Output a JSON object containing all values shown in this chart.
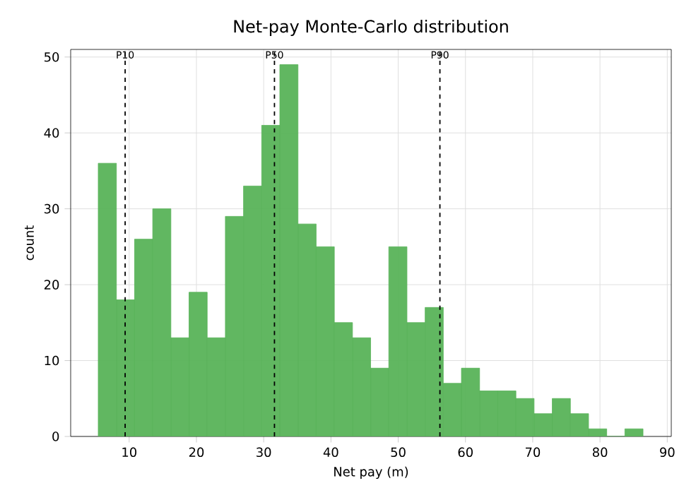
{
  "chart_data": {
    "type": "histogram",
    "title": "Net-pay Monte-Carlo distribution",
    "xlabel": "Net pay (m)",
    "ylabel": "count",
    "bins": [
      5.4,
      8.1,
      10.8,
      13.5,
      16.2,
      18.9,
      21.6,
      24.3,
      27.0,
      29.7,
      32.4,
      35.1,
      37.8,
      40.5,
      43.2,
      45.9,
      48.6,
      51.3,
      54.0,
      56.7,
      59.4,
      62.1,
      64.8,
      67.5,
      70.2,
      72.9,
      75.6,
      78.3,
      81.0,
      83.7,
      86.4
    ],
    "values": [
      36,
      18,
      26,
      30,
      13,
      19,
      13,
      29,
      33,
      41,
      49,
      28,
      25,
      15,
      13,
      9,
      25,
      15,
      17,
      7,
      9,
      6,
      6,
      5,
      3,
      5,
      3,
      1,
      0,
      1
    ],
    "color": "#59b359",
    "xlim": [
      1.3,
      90.6
    ],
    "ylim": [
      0,
      51
    ],
    "xticks": [
      10,
      20,
      30,
      40,
      50,
      60,
      70,
      80,
      90
    ],
    "yticks": [
      0,
      10,
      20,
      30,
      40,
      50
    ],
    "grid": true,
    "ref_lines": [
      {
        "axis": "x",
        "value": 9.4,
        "label": "P10",
        "color": "#000000",
        "line_style": "dashed"
      },
      {
        "axis": "x",
        "value": 31.6,
        "label": "P50",
        "color": "#000000",
        "line_style": "dashed"
      },
      {
        "axis": "x",
        "value": 56.2,
        "label": "P90",
        "color": "#000000",
        "line_style": "dashed"
      }
    ]
  }
}
